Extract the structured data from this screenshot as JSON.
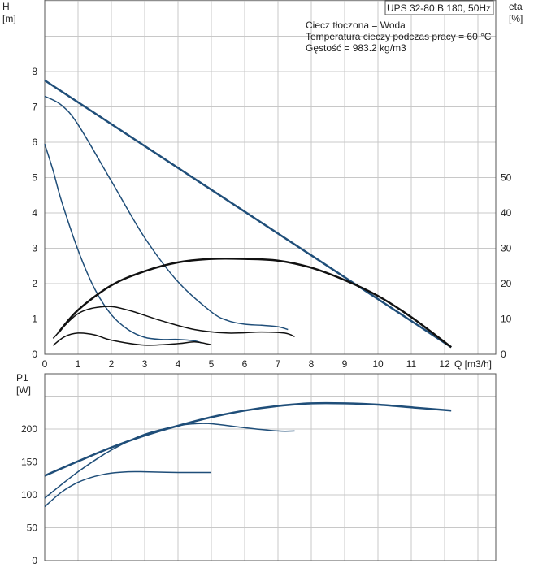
{
  "title_box": "UPS 32-80 B 180, 50Hz",
  "info_lines": [
    "Ciecz tłoczona = Woda",
    "Temperatura cieczy podczas pracy = 60 °C",
    "Gęstość = 983.2 kg/m3"
  ],
  "top_chart": {
    "y_label_name": "H",
    "y_label_unit": "[m]",
    "y2_label_name": "eta",
    "y2_label_unit": "[%]",
    "x_label": "Q [m3/h]",
    "x_ticks": [
      "0",
      "1",
      "2",
      "3",
      "4",
      "5",
      "6",
      "7",
      "8",
      "9",
      "10",
      "11",
      "12"
    ],
    "y_ticks": [
      "0",
      "1",
      "2",
      "3",
      "4",
      "5",
      "6",
      "7",
      "8"
    ],
    "y2_ticks": [
      "0",
      "10",
      "20",
      "30",
      "40",
      "50"
    ]
  },
  "bottom_chart": {
    "y_label_name": "P1",
    "y_label_unit": "[W]",
    "y_ticks": [
      "0",
      "50",
      "100",
      "150",
      "200"
    ]
  },
  "colors": {
    "pump_curve": "#1f4e79",
    "efficiency_curve": "#111111",
    "grid": "#c8c8c8"
  },
  "chart_data": [
    {
      "type": "line",
      "title": "UPS 32-80 B 180, 50Hz",
      "xlabel": "Q [m3/h]",
      "ylabel": "H [m]",
      "y2label": "eta [%]",
      "xlim": [
        0,
        13.5
      ],
      "ylim": [
        0,
        9.5
      ],
      "y2lim": [
        0,
        70
      ],
      "grid": true,
      "series": [
        {
          "axis": "H",
          "style": "thick",
          "x": [
            0,
            12.2
          ],
          "y": [
            7.75,
            0.2
          ]
        },
        {
          "axis": "H",
          "style": "thin",
          "x": [
            0,
            0.5,
            1,
            2,
            3,
            4,
            5,
            5.5,
            6,
            6.5,
            7,
            7.3
          ],
          "y": [
            7.3,
            7.05,
            6.5,
            4.9,
            3.3,
            2.05,
            1.2,
            0.95,
            0.85,
            0.82,
            0.78,
            0.7
          ]
        },
        {
          "axis": "H",
          "style": "thin",
          "x": [
            0,
            0.25,
            0.5,
            1,
            1.5,
            2,
            2.5,
            3,
            3.5,
            4,
            4.5,
            4.7
          ],
          "y": [
            5.95,
            5.2,
            4.35,
            2.95,
            1.85,
            1.12,
            0.7,
            0.48,
            0.42,
            0.42,
            0.38,
            0.32
          ]
        },
        {
          "axis": "eta",
          "style": "thick",
          "x": [
            0.4,
            1,
            2,
            3,
            4,
            5,
            6,
            7,
            8,
            9,
            10,
            11,
            12.2
          ],
          "y": [
            6,
            12.5,
            19.5,
            23.5,
            26,
            27,
            27,
            26.5,
            24.5,
            21,
            16.5,
            10.5,
            2
          ]
        },
        {
          "axis": "eta",
          "style": "thin",
          "x": [
            0.25,
            1,
            1.8,
            2.5,
            3.5,
            4.5,
            5.5,
            6.5,
            7.2,
            7.5
          ],
          "y": [
            4.5,
            11.5,
            13.5,
            12.5,
            9.5,
            7,
            6,
            6.3,
            6,
            5
          ]
        },
        {
          "axis": "eta",
          "style": "thin",
          "x": [
            0.25,
            0.6,
            1,
            1.5,
            2,
            3,
            4,
            4.5,
            5
          ],
          "y": [
            2.5,
            5,
            6,
            5.5,
            4,
            2.6,
            3,
            3.5,
            2.7
          ]
        }
      ]
    },
    {
      "type": "line",
      "xlabel": "Q [m3/h]",
      "ylabel": "P1 [W]",
      "xlim": [
        0,
        13.5
      ],
      "ylim": [
        0,
        255
      ],
      "grid": true,
      "series": [
        {
          "style": "thick",
          "x": [
            0,
            1,
            2,
            3,
            4,
            5,
            6,
            7,
            8,
            9,
            10,
            11,
            12.2
          ],
          "y": [
            129,
            151,
            172,
            190,
            205,
            218,
            228,
            235,
            239,
            239,
            237,
            233,
            228
          ]
        },
        {
          "style": "thin",
          "x": [
            0,
            1,
            2,
            3,
            4,
            4.5,
            5,
            6,
            7,
            7.5
          ],
          "y": [
            95,
            135,
            168,
            192,
            205,
            208,
            208,
            202,
            197,
            197
          ]
        },
        {
          "style": "thin",
          "x": [
            0,
            0.5,
            1,
            1.5,
            2,
            2.5,
            3,
            4,
            5
          ],
          "y": [
            82,
            104,
            119,
            128,
            133,
            135,
            135,
            134,
            134
          ]
        }
      ]
    }
  ]
}
